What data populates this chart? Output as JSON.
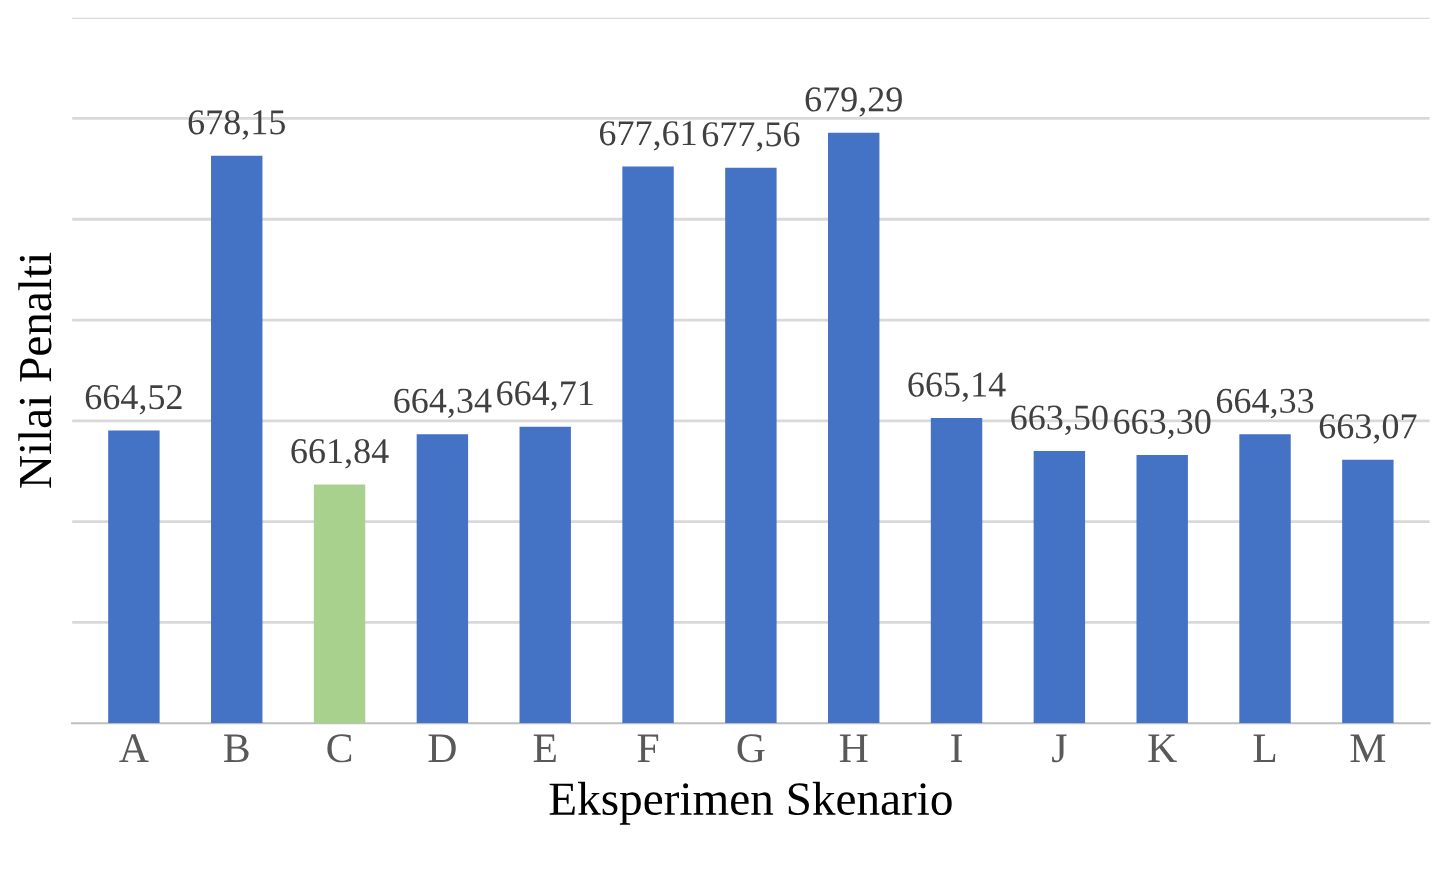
{
  "chart_data": {
    "type": "bar",
    "xlabel": "Eksperimen Skenario",
    "ylabel": "Nilai Penalti",
    "categories": [
      "A",
      "B",
      "C",
      "D",
      "E",
      "F",
      "G",
      "H",
      "I",
      "J",
      "K",
      "L",
      "M"
    ],
    "values": [
      664.52,
      678.15,
      661.84,
      664.34,
      664.71,
      677.61,
      677.56,
      679.29,
      665.14,
      663.5,
      663.3,
      664.33,
      663.07
    ],
    "value_labels": [
      "664,52",
      "678,15",
      "661,84",
      "664,34",
      "664,71",
      "677,61",
      "677,56",
      "679,29",
      "665,14",
      "663,50",
      "663,30",
      "664,33",
      "663,07"
    ],
    "colors": [
      "#4472c4",
      "#4472c4",
      "#a9d18e",
      "#4472c4",
      "#4472c4",
      "#4472c4",
      "#4472c4",
      "#4472c4",
      "#4472c4",
      "#4472c4",
      "#4472c4",
      "#4472c4",
      "#4472c4"
    ],
    "ylim": [
      650,
      685
    ],
    "yticks": [
      {
        "value": 655,
        "label": null
      },
      {
        "value": 660,
        "label": null
      },
      {
        "value": 665,
        "label": null
      },
      {
        "value": 670,
        "label": null
      },
      {
        "value": 675,
        "label": null
      },
      {
        "value": 680,
        "label": null
      },
      {
        "value": 685,
        "label": null
      }
    ],
    "grid": "y",
    "tick_labels": "x",
    "legend": false
  }
}
